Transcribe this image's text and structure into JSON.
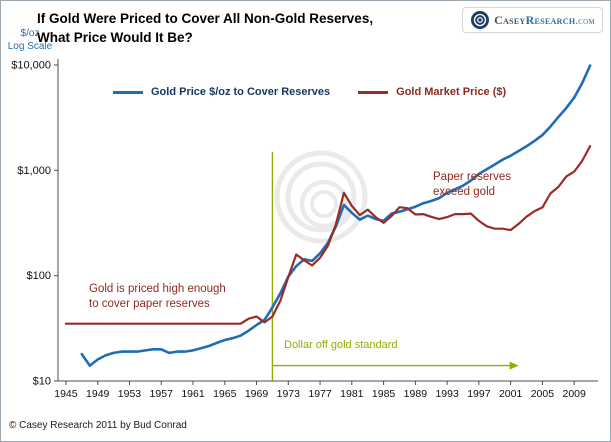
{
  "header": {
    "title_line1": "If Gold Were Priced to Cover All Non-Gold Reserves,",
    "title_line2": "What Price Would It Be?"
  },
  "logo": {
    "part1": "Casey",
    "part2": "Research",
    "part3": ".com"
  },
  "axis": {
    "y_label_line1": "$/oz",
    "y_label_line2": "Log Scale"
  },
  "legend": [
    {
      "label": "Gold Price $/oz to Cover Reserves",
      "line_color": "#1f6db4",
      "text_color": "#17375e"
    },
    {
      "label": "Gold Market Price ($)",
      "line_color": "#9e2a25",
      "text_color": "#8e2a21"
    }
  ],
  "annotations": {
    "left_line1": "Gold is priced high enough",
    "left_line2": "to cover paper reserves",
    "right_line1": "Paper reserves",
    "right_line2": "exceed gold",
    "arrow_label": "Dollar off gold standard"
  },
  "footer": {
    "copyright": "© Casey Research 2011 by Bud Conrad"
  },
  "colors": {
    "dark_red": "#8e2a21",
    "olive": "#92ad00",
    "axis_blue": "#1f6db4"
  },
  "chart_data": {
    "type": "line",
    "title": "If Gold Were Priced to Cover All Non-Gold Reserves, What Price Would It Be?",
    "ylabel": "$/oz Log Scale",
    "y_scale": "log",
    "ylim": [
      10,
      10000
    ],
    "xlim": [
      1944,
      2012
    ],
    "grid": false,
    "legend_position": "top-inside",
    "x_ticks": [
      1945,
      1949,
      1953,
      1957,
      1961,
      1965,
      1969,
      1973,
      1977,
      1981,
      1985,
      1989,
      1993,
      1997,
      2001,
      2005,
      2009
    ],
    "y_ticks": [
      {
        "value": 10,
        "label": "$10"
      },
      {
        "value": 100,
        "label": "$100"
      },
      {
        "value": 1000,
        "label": "$1,000"
      },
      {
        "value": 10000,
        "label": "$10,000"
      }
    ],
    "x": [
      1945,
      1946,
      1947,
      1948,
      1949,
      1950,
      1951,
      1952,
      1953,
      1954,
      1955,
      1956,
      1957,
      1958,
      1959,
      1960,
      1961,
      1962,
      1963,
      1964,
      1965,
      1966,
      1967,
      1968,
      1969,
      1970,
      1971,
      1972,
      1973,
      1974,
      1975,
      1976,
      1977,
      1978,
      1979,
      1980,
      1981,
      1982,
      1983,
      1984,
      1985,
      1986,
      1987,
      1988,
      1989,
      1990,
      1991,
      1992,
      1993,
      1994,
      1995,
      1996,
      1997,
      1998,
      1999,
      2000,
      2001,
      2002,
      2003,
      2004,
      2005,
      2006,
      2007,
      2008,
      2009,
      2010,
      2011
    ],
    "series": [
      {
        "name": "Gold Price $/oz to Cover Reserves",
        "color": "#1f6db4",
        "values": [
          null,
          null,
          18,
          14,
          16,
          17.5,
          18.5,
          19,
          19,
          19,
          19.5,
          20,
          20,
          18.5,
          19,
          19,
          19.5,
          20.5,
          21.5,
          23,
          24.5,
          25.5,
          27,
          30,
          34,
          38,
          50,
          68,
          98,
          123,
          143,
          138,
          163,
          205,
          295,
          470,
          395,
          340,
          372,
          345,
          332,
          388,
          405,
          428,
          452,
          488,
          512,
          545,
          612,
          660,
          715,
          800,
          925,
          1025,
          1135,
          1265,
          1375,
          1525,
          1690,
          1905,
          2160,
          2600,
          3200,
          3900,
          4900,
          6700,
          9900
        ]
      },
      {
        "name": "Gold Market Price ($)",
        "color": "#9e2a25",
        "values": [
          35,
          35,
          35,
          35,
          35,
          35,
          35,
          35,
          35,
          35,
          35,
          35,
          35,
          35,
          35,
          35,
          35,
          35,
          35,
          35,
          35,
          35,
          35,
          39,
          41,
          36,
          41,
          58,
          97,
          159,
          140,
          125,
          148,
          193,
          307,
          612,
          460,
          376,
          424,
          360,
          317,
          368,
          447,
          437,
          381,
          384,
          362,
          344,
          360,
          384,
          384,
          388,
          331,
          294,
          279,
          279,
          271,
          310,
          363,
          410,
          445,
          603,
          695,
          872,
          972,
          1225,
          1700
        ]
      }
    ],
    "vline": {
      "x": 1971,
      "y_from": 10,
      "y_to": 1500,
      "color": "#92ad00"
    },
    "arrow": {
      "y": 14,
      "x_from": 1971,
      "x_to": 2002,
      "color": "#92ad00",
      "label": "Dollar off gold standard"
    }
  }
}
